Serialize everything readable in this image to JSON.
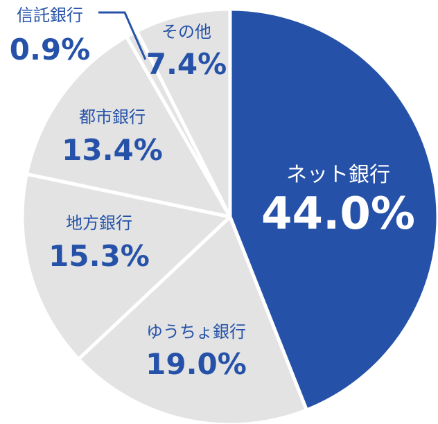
{
  "chart_data": {
    "type": "pie",
    "categories": [
      "ネット銀行",
      "ゆうちょ銀行",
      "地方銀行",
      "都市銀行",
      "信託銀行",
      "その他"
    ],
    "values": [
      44.0,
      19.0,
      15.3,
      13.4,
      0.9,
      7.4
    ],
    "value_labels": [
      "44.0%",
      "19.0%",
      "15.3%",
      "13.4%",
      "0.9%",
      "7.4%"
    ],
    "unit": "%",
    "start_angle_deg": 0,
    "direction": "clockwise from top",
    "highlight_category": "ネット銀行"
  },
  "colors": {
    "highlight": "#2552a8",
    "slice": "#e3e3e3",
    "separator": "#ffffff",
    "label": "#2552a8",
    "label_on_highlight": "#ffffff"
  }
}
